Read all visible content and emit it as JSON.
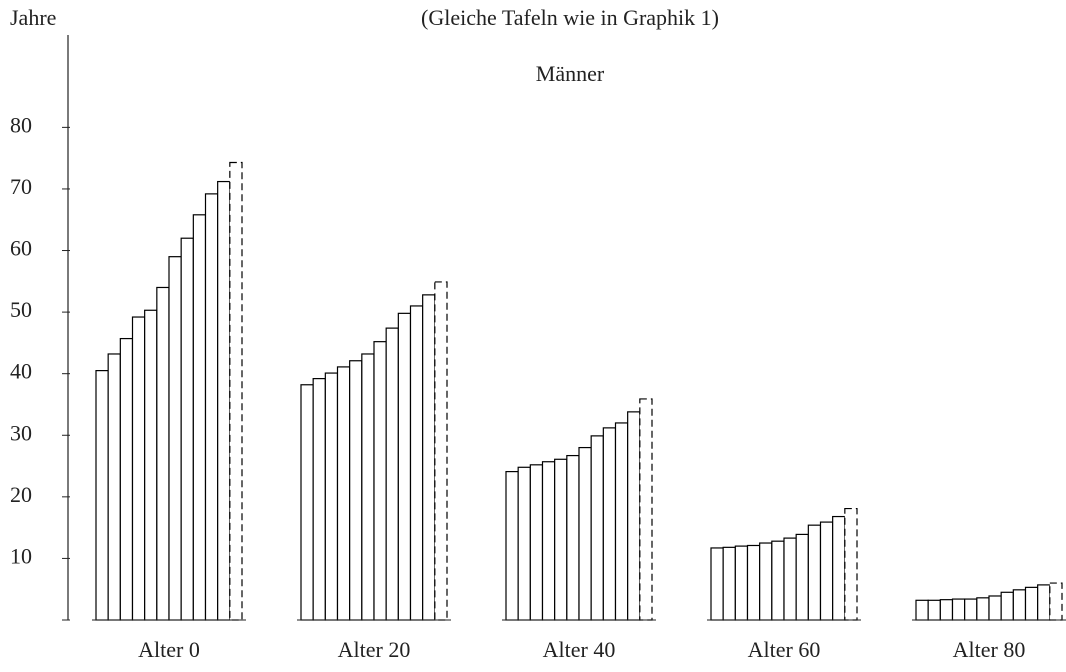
{
  "chart_data": {
    "type": "bar",
    "title": "(Gleiche Tafeln wie in Graphik 1)",
    "subtitle": "Männer",
    "y_label": "Jahre",
    "categories": [
      "Alter 0",
      "Alter 20",
      "Alter 40",
      "Alter 60",
      "Alter 80"
    ],
    "series": [
      {
        "color": "#000000",
        "values": [
          40.5,
          38.2,
          24.1,
          11.7,
          3.2
        ]
      },
      {
        "color": "#000000",
        "values": [
          43.2,
          39.2,
          24.8,
          11.8,
          3.2
        ]
      },
      {
        "color": "#000000",
        "values": [
          45.7,
          40.1,
          25.2,
          12.0,
          3.3
        ]
      },
      {
        "color": "#000000",
        "values": [
          49.2,
          41.1,
          25.7,
          12.1,
          3.4
        ]
      },
      {
        "color": "#000000",
        "values": [
          50.3,
          42.1,
          26.1,
          12.5,
          3.4
        ]
      },
      {
        "color": "#000000",
        "values": [
          54.0,
          43.2,
          26.7,
          12.8,
          3.6
        ]
      },
      {
        "color": "#000000",
        "values": [
          59.0,
          45.2,
          28.0,
          13.3,
          3.9
        ]
      },
      {
        "color": "#000000",
        "values": [
          62.0,
          47.4,
          29.9,
          13.9,
          4.5
        ]
      },
      {
        "color": "#000000",
        "values": [
          65.8,
          49.8,
          31.2,
          15.4,
          4.9
        ]
      },
      {
        "color": "#000000",
        "values": [
          69.2,
          51.0,
          32.0,
          15.9,
          5.3
        ]
      },
      {
        "color": "#000000",
        "values": [
          71.2,
          52.8,
          33.8,
          16.8,
          5.7
        ]
      },
      {
        "color": "#000000",
        "line_style": "dashed",
        "values": [
          74.3,
          54.9,
          35.9,
          18.1,
          6.0
        ]
      }
    ],
    "ylim": [
      0,
      95
    ],
    "yticks": [
      10,
      20,
      30,
      40,
      50,
      60,
      70,
      80
    ],
    "grid": false
  }
}
